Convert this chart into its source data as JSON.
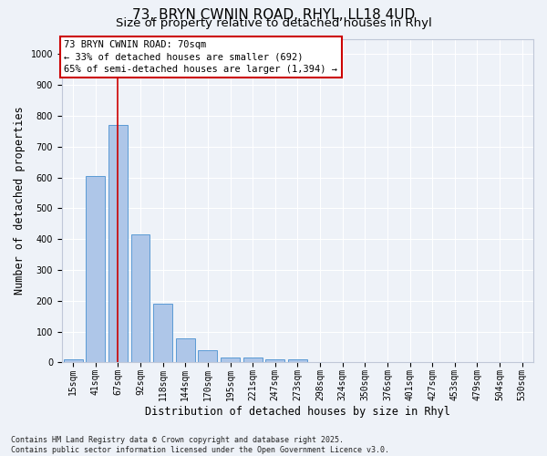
{
  "title_line1": "73, BRYN CWNIN ROAD, RHYL, LL18 4UD",
  "title_line2": "Size of property relative to detached houses in Rhyl",
  "xlabel": "Distribution of detached houses by size in Rhyl",
  "ylabel": "Number of detached properties",
  "categories": [
    "15sqm",
    "41sqm",
    "67sqm",
    "92sqm",
    "118sqm",
    "144sqm",
    "170sqm",
    "195sqm",
    "221sqm",
    "247sqm",
    "273sqm",
    "298sqm",
    "324sqm",
    "350sqm",
    "376sqm",
    "401sqm",
    "427sqm",
    "453sqm",
    "479sqm",
    "504sqm",
    "530sqm"
  ],
  "values": [
    10,
    605,
    770,
    415,
    190,
    78,
    40,
    15,
    15,
    10,
    10,
    0,
    0,
    0,
    0,
    0,
    0,
    0,
    0,
    0,
    0
  ],
  "bar_color": "#aec6e8",
  "bar_edge_color": "#5b9bd5",
  "vline_x": 2,
  "vline_color": "#cc0000",
  "annotation_line1": "73 BRYN CWNIN ROAD: 70sqm",
  "annotation_line2": "← 33% of detached houses are smaller (692)",
  "annotation_line3": "65% of semi-detached houses are larger (1,394) →",
  "ylim": [
    0,
    1050
  ],
  "yticks": [
    0,
    100,
    200,
    300,
    400,
    500,
    600,
    700,
    800,
    900,
    1000
  ],
  "background_color": "#eef2f8",
  "grid_color": "#ffffff",
  "footer_text": "Contains HM Land Registry data © Crown copyright and database right 2025.\nContains public sector information licensed under the Open Government Licence v3.0.",
  "title_fontsize": 11,
  "subtitle_fontsize": 9.5,
  "axis_label_fontsize": 8.5,
  "tick_fontsize": 7,
  "annotation_fontsize": 7.5,
  "footer_fontsize": 6
}
